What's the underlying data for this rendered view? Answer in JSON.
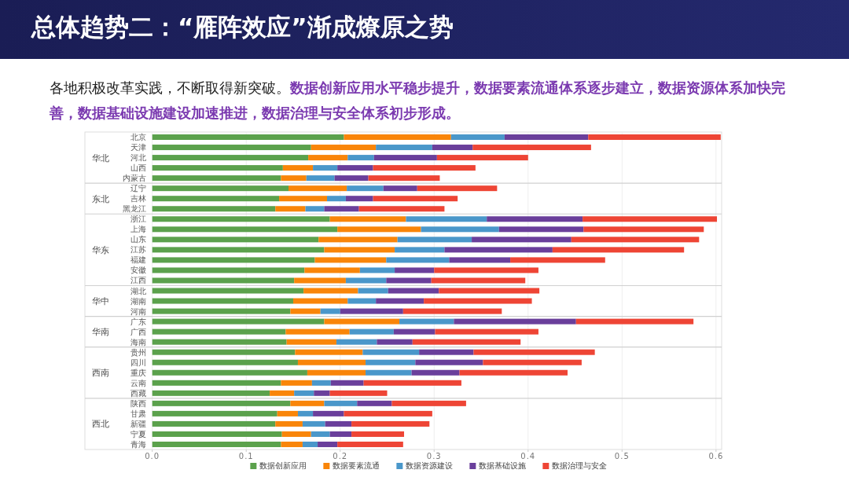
{
  "chart_data": {
    "type": "bar",
    "orientation": "horizontal",
    "stacked": true,
    "title": "总体趋势二：“雁阵效应”渐成燎原之势",
    "subtitle": "各地积极改革实践，不断取得新突破。",
    "annotations": [
      "数据创新应用水平稳步提升，数据要素流通体系逐步建立，数据资源体系加快完善，数据基础设施建设加速推进，数据治理与安全体系初步形成。",
      "华北",
      "东北",
      "华东",
      "华中",
      "华南",
      "西南",
      "西北"
    ],
    "categories": [
      "北京",
      "天津",
      "河北",
      "山西",
      "内蒙古",
      "辽宁",
      "吉林",
      "黑龙江",
      "浙江",
      "上海",
      "山东",
      "江苏",
      "福建",
      "安徽",
      "江西",
      "湖北",
      "湖南",
      "河南",
      "广东",
      "广西",
      "海南",
      "贵州",
      "四川",
      "重庆",
      "云南",
      "西藏",
      "陕西",
      "甘肃",
      "新疆",
      "宁夏",
      "青海"
    ],
    "series": [
      {
        "name": "数据创新应用",
        "color": "#5ba14c",
        "values": [
          0.204,
          0.169,
          0.166,
          0.139,
          0.137,
          0.145,
          0.135,
          0.131,
          0.189,
          0.197,
          0.177,
          0.183,
          0.173,
          0.162,
          0.151,
          0.161,
          0.15,
          0.147,
          0.183,
          0.142,
          0.143,
          0.152,
          0.155,
          0.165,
          0.137,
          0.125,
          0.147,
          0.133,
          0.131,
          0.138,
          0.137
        ]
      },
      {
        "name": "数据要素流通",
        "color": "#f98509",
        "values": [
          0.114,
          0.069,
          0.042,
          0.032,
          0.027,
          0.062,
          0.051,
          0.032,
          0.081,
          0.089,
          0.084,
          0.075,
          0.076,
          0.059,
          0.055,
          0.058,
          0.058,
          0.032,
          0.08,
          0.068,
          0.053,
          0.072,
          0.072,
          0.062,
          0.033,
          0.026,
          0.036,
          0.022,
          0.029,
          0.031,
          0.023
        ]
      },
      {
        "name": "数据资源建设",
        "color": "#4a97ca",
        "values": [
          0.057,
          0.06,
          0.028,
          0.026,
          0.03,
          0.039,
          0.02,
          0.02,
          0.086,
          0.083,
          0.079,
          0.053,
          0.067,
          0.037,
          0.043,
          0.032,
          0.03,
          0.021,
          0.058,
          0.047,
          0.043,
          0.06,
          0.053,
          0.049,
          0.02,
          0.021,
          0.035,
          0.016,
          0.024,
          0.02,
          0.016
        ]
      },
      {
        "name": "数据基础设施",
        "color": "#6a3f9b",
        "values": [
          0.089,
          0.043,
          0.067,
          0.038,
          0.036,
          0.036,
          0.029,
          0.037,
          0.102,
          0.09,
          0.106,
          0.115,
          0.065,
          0.042,
          0.048,
          0.054,
          0.051,
          0.067,
          0.13,
          0.044,
          0.038,
          0.058,
          0.072,
          0.051,
          0.035,
          0.017,
          0.037,
          0.033,
          0.028,
          0.023,
          0.021
        ]
      },
      {
        "name": "数据治理与安全",
        "color": "#ee4535",
        "values": [
          0.141,
          0.126,
          0.097,
          0.109,
          0.076,
          0.085,
          0.09,
          0.091,
          0.143,
          0.128,
          0.136,
          0.14,
          0.101,
          0.111,
          0.1,
          0.107,
          0.115,
          0.105,
          0.125,
          0.11,
          0.115,
          0.129,
          0.105,
          0.115,
          0.104,
          0.061,
          0.079,
          0.094,
          0.083,
          0.056,
          0.07
        ]
      }
    ],
    "xlim": [
      0,
      0.606
    ],
    "xticks": [
      {
        "value": 0,
        "label": "0.0"
      },
      {
        "value": 0.1,
        "label": "0.1"
      },
      {
        "value": 0.2,
        "label": "0.2"
      },
      {
        "value": 0.3,
        "label": "0.3"
      },
      {
        "value": 0.4,
        "label": "0.4"
      },
      {
        "value": 0.5,
        "label": "0.5"
      },
      {
        "value": 0.6,
        "label": "0.6"
      }
    ],
    "grid": "x",
    "legend": "bottom"
  }
}
